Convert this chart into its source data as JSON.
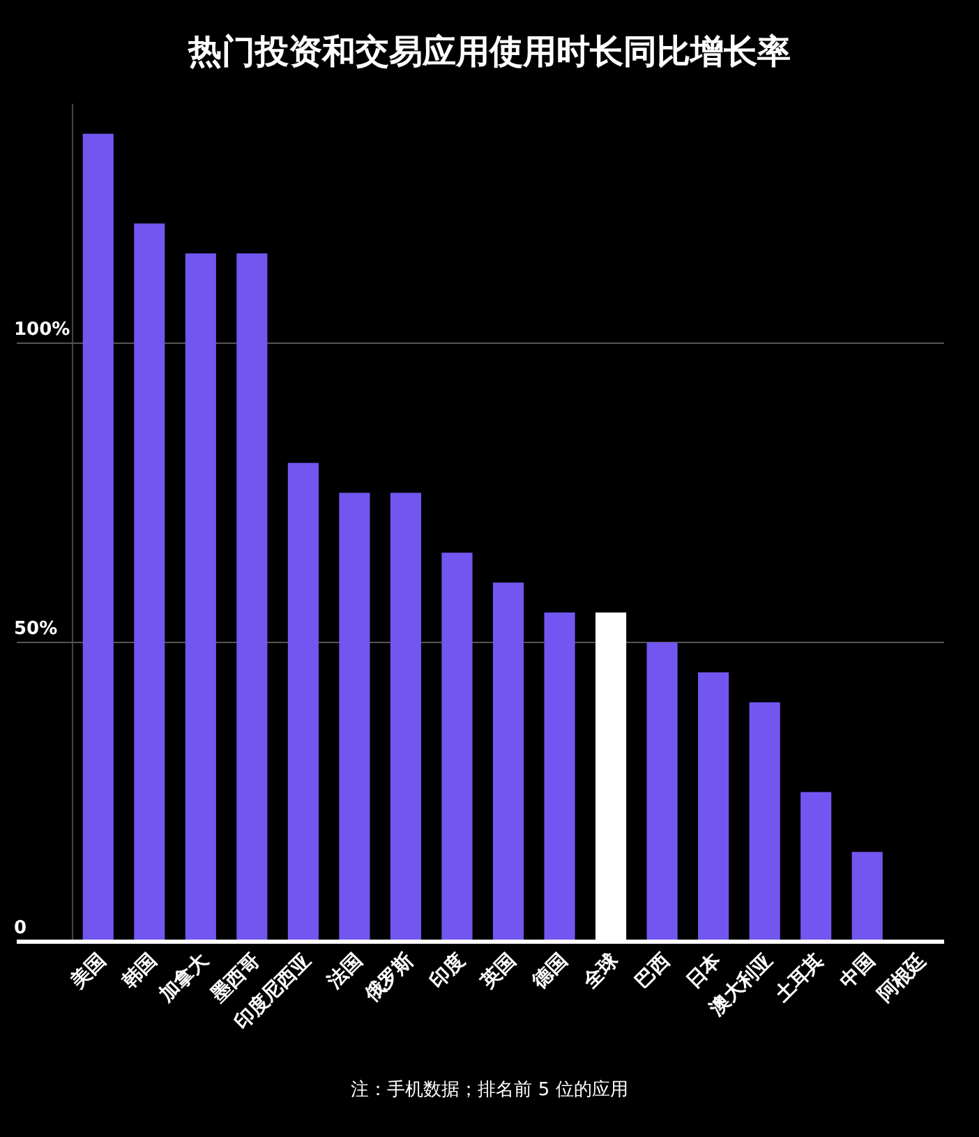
{
  "chart_data": {
    "type": "bar",
    "title": "热门投资和交易应用使用时长同比增长率",
    "categories": [
      "美国",
      "韩国",
      "加拿大",
      "墨西哥",
      "印度尼西亚",
      "法国",
      "俄罗斯",
      "印度",
      "英国",
      "德国",
      "全球",
      "巴西",
      "日本",
      "澳大利亚",
      "土耳其",
      "中国",
      "阿根廷"
    ],
    "values": [
      135,
      120,
      115,
      115,
      80,
      75,
      75,
      65,
      60,
      55,
      55,
      50,
      45,
      40,
      25,
      15,
      0
    ],
    "colors": [
      "#7356f0",
      "#7356f0",
      "#7356f0",
      "#7356f0",
      "#7356f0",
      "#7356f0",
      "#7356f0",
      "#7356f0",
      "#7356f0",
      "#7356f0",
      "#ffffff",
      "#7356f0",
      "#7356f0",
      "#7356f0",
      "#7356f0",
      "#7356f0",
      "#7356f0"
    ],
    "ylim": [
      0,
      140
    ],
    "yticks": [
      0,
      {
        "value": 50,
        "label": "50%"
      },
      {
        "value": 100,
        "label": "100%"
      }
    ],
    "grid": "y",
    "annotations": [
      "注：手机数据；排名前 5 位的应用"
    ]
  }
}
